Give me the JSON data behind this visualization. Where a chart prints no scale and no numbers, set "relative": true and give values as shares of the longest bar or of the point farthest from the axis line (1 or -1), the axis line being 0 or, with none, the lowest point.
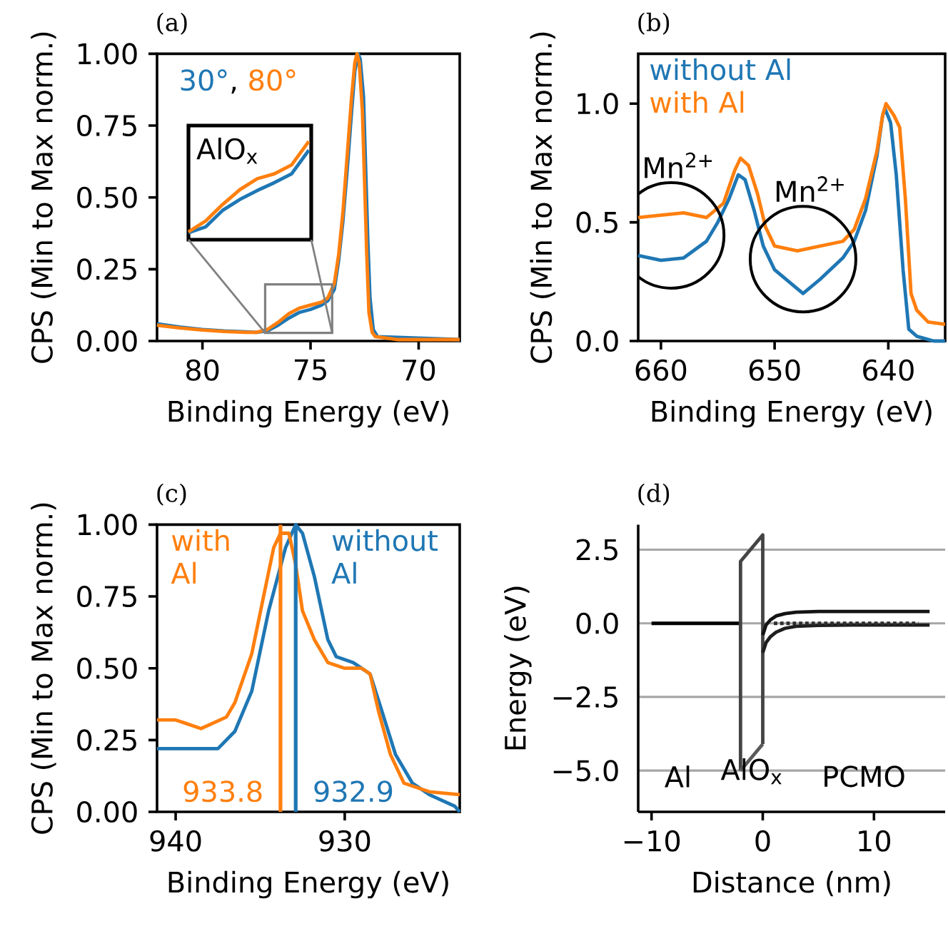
{
  "chart_data": [
    {
      "type": "line",
      "title": "(a)",
      "annotations": [
        ","
      ],
      "xlabel": "Binding Energy (eV)",
      "ylabel": "CPS (Min to Max norm.)",
      "xlim": [
        82.1,
        68.1
      ],
      "ylim": [
        0,
        1
      ],
      "xticks": [
        80,
        75,
        70
      ],
      "yticks": [
        {
          "value": 0,
          "label": "0.00"
        },
        {
          "value": 0.25,
          "label": "0.25"
        },
        {
          "value": 0.5,
          "label": "0.50"
        },
        {
          "value": 0.75,
          "label": "0.75"
        },
        {
          "value": 1,
          "label": "1.00"
        }
      ],
      "series": [
        {
          "name": "30°",
          "color": "#1f77b4",
          "x": [
            82.1,
            81,
            80,
            79,
            78,
            77.5,
            77,
            76.5,
            76,
            75.5,
            75,
            74.5,
            74.2,
            73.9,
            73.7,
            73.5,
            73.3,
            73.1,
            72.95,
            72.8,
            72.7,
            72.55,
            72.45,
            72.35,
            72.25,
            72.1,
            71.9,
            71,
            68.1
          ],
          "values": [
            0.06,
            0.048,
            0.04,
            0.035,
            0.032,
            0.03,
            0.035,
            0.055,
            0.08,
            0.1,
            0.11,
            0.125,
            0.14,
            0.18,
            0.28,
            0.42,
            0.6,
            0.8,
            0.94,
            1.0,
            0.98,
            0.85,
            0.6,
            0.35,
            0.15,
            0.04,
            0.015,
            null,
            0.005
          ]
        },
        {
          "name": "80°",
          "color": "#ff7f0e",
          "x": [
            82.1,
            81,
            80,
            79,
            78,
            77.5,
            77,
            76.5,
            76,
            75.5,
            75,
            74.5,
            74.2,
            73.9,
            73.7,
            73.5,
            73.3,
            73.1,
            72.95,
            72.85,
            72.75,
            72.6,
            72.5,
            72.4,
            72.3,
            72.15,
            72,
            71,
            68.1
          ],
          "values": [
            0.055,
            0.045,
            0.038,
            0.033,
            0.03,
            0.03,
            0.04,
            0.065,
            0.095,
            0.115,
            0.125,
            0.135,
            0.15,
            0.2,
            0.3,
            0.45,
            0.65,
            0.85,
            0.97,
            1.0,
            0.97,
            0.8,
            0.55,
            0.3,
            0.1,
            0.03,
            0.015,
            0.005,
            0.005
          ]
        }
      ]
    },
    {
      "type": "line",
      "annotations": [
        "AlO$_{x}$"
      ],
      "relative": true,
      "categories": [
        null,
        null,
        null,
        null,
        null,
        null,
        null,
        null
      ],
      "series": [
        {
          "color": "#1f77b4",
          "values": [
            0.07,
            0.13,
            0.3,
            0.41,
            0.5,
            0.58,
            0.67,
            0.91
          ]
        },
        {
          "color": "#ff7f0e",
          "values": [
            0.08,
            0.19,
            0.36,
            0.51,
            0.62,
            0.67,
            0.76,
            1.0
          ]
        }
      ]
    },
    {
      "type": "line",
      "title": "(b)",
      "xlabel": "Binding Energy (eV)",
      "ylabel": "CPS (Min to Max norm.)",
      "xlim": [
        662.0,
        635.0
      ],
      "ylim": [
        0,
        1.21
      ],
      "xticks": [
        660,
        650,
        640
      ],
      "yticks": [
        {
          "value": 0,
          "label": "0.0"
        },
        {
          "value": 0.5,
          "label": "0.5"
        },
        {
          "value": 1,
          "label": "1.0"
        }
      ],
      "annotations": [
        "Mn$^{2+}$",
        "Mn$^{2+}$"
      ],
      "series": [
        {
          "name": "without Al",
          "color": "#1f77b4",
          "x": [
            662,
            660,
            658,
            656,
            655,
            654,
            653.2,
            652.6,
            651.8,
            651,
            650,
            648.5,
            647.5,
            646,
            644,
            643,
            642,
            641,
            640.5,
            640.3,
            639.8,
            639.3,
            638.7,
            638.2,
            637.5,
            636,
            635
          ],
          "values": [
            0.36,
            0.34,
            0.35,
            0.42,
            0.5,
            0.6,
            0.7,
            0.68,
            0.55,
            0.4,
            0.3,
            0.24,
            0.2,
            0.26,
            0.35,
            0.42,
            0.55,
            0.78,
            0.95,
            0.98,
            0.92,
            0.7,
            0.3,
            0.05,
            0.02,
            0.0,
            0.0
          ]
        },
        {
          "name": "with Al",
          "color": "#ff7f0e",
          "x": [
            662,
            660,
            658,
            656,
            654.5,
            653.5,
            653,
            652.3,
            651.5,
            650.8,
            650,
            648,
            646,
            644,
            643,
            642,
            641,
            640.5,
            640.2,
            639.5,
            639,
            638.5,
            638,
            637.5,
            636.5,
            635
          ],
          "values": [
            0.52,
            0.53,
            0.54,
            0.52,
            0.58,
            0.72,
            0.77,
            0.74,
            0.62,
            0.48,
            0.4,
            0.38,
            0.4,
            0.42,
            0.47,
            0.6,
            0.8,
            0.95,
            1.0,
            0.95,
            0.9,
            0.6,
            0.2,
            0.13,
            0.08,
            0.07
          ]
        }
      ]
    },
    {
      "type": "line",
      "title": "(c)",
      "xlabel": "Binding Energy (eV)",
      "ylabel": "CPS (Min to Max norm.)",
      "xlim": [
        941.1,
        923.2
      ],
      "ylim": [
        0,
        1
      ],
      "xticks": [
        940,
        930
      ],
      "yticks": [
        {
          "value": 0,
          "label": "0.00"
        },
        {
          "value": 0.25,
          "label": "0.25"
        },
        {
          "value": 0.5,
          "label": "0.50"
        },
        {
          "value": 0.75,
          "label": "0.75"
        },
        {
          "value": 1,
          "label": "1.00"
        }
      ],
      "ref_lines": [
        {
          "axis": "x",
          "value": 933.8,
          "label": "933.8",
          "color": "#ff7f0e"
        },
        {
          "axis": "x",
          "value": 932.9,
          "label": "932.9",
          "color": "#1f77b4"
        }
      ],
      "series": [
        {
          "name": "without Al",
          "color": "#1f77b4",
          "x": [
            941.1,
            939,
            937.5,
            936.5,
            935.5,
            934.5,
            933.5,
            932.9,
            932.5,
            931.8,
            931,
            930.5,
            929.5,
            928.5,
            927.8,
            927,
            926,
            925,
            923.5,
            923.2
          ],
          "values": [
            0.22,
            0.22,
            0.22,
            0.28,
            0.42,
            0.7,
            0.92,
            1.0,
            0.97,
            0.82,
            0.6,
            0.54,
            0.52,
            0.48,
            0.35,
            0.2,
            0.1,
            0.06,
            0.02,
            0.0
          ]
        },
        {
          "name": "with Al",
          "color": "#ff7f0e",
          "x": [
            941.1,
            940,
            938.5,
            937,
            936.5,
            935.5,
            934.8,
            934.2,
            933.8,
            933.3,
            932.9,
            932.5,
            931.8,
            931,
            930,
            929,
            928.5,
            928,
            927.3,
            926.5,
            925,
            923.2
          ],
          "values": [
            0.32,
            0.32,
            0.29,
            0.33,
            0.38,
            0.55,
            0.75,
            0.92,
            0.97,
            0.97,
            0.86,
            0.7,
            0.6,
            0.52,
            0.5,
            0.5,
            0.48,
            0.35,
            0.2,
            0.1,
            0.07,
            0.06
          ]
        }
      ]
    },
    {
      "type": "line",
      "title": "(d)",
      "xlabel": "Distance (nm)",
      "ylabel": "Energy (eV)",
      "xlim": [
        -11.2,
        16.4
      ],
      "ylim": [
        -6.4,
        3.35
      ],
      "grid": "y",
      "xticks": [
        {
          "value": -10,
          "label": "−10"
        },
        0,
        10
      ],
      "yticks": [
        {
          "value": -5,
          "label": "−5.0"
        },
        {
          "value": -2.5,
          "label": "−2.5"
        },
        {
          "value": 0,
          "label": "0.0"
        },
        {
          "value": 2.5,
          "label": "2.5"
        }
      ],
      "annotations": [
        "Al",
        "AlO$_{x}$",
        "PCMO"
      ],
      "series": [
        {
          "color": "#000000",
          "x": [
            -10,
            -2
          ],
          "values": [
            0,
            0
          ]
        },
        {
          "color": "#444444",
          "x": [
            -2,
            -2,
            0,
            0
          ],
          "values": [
            -5.0,
            2.1,
            3.0,
            -4.1
          ]
        },
        {
          "color": "#5a5a5a",
          "x": [
            -2,
            0
          ],
          "values": [
            -5.0,
            -4.1
          ]
        },
        {
          "color": "#141414",
          "x": [
            0,
            0.3,
            0.7,
            1.2,
            2,
            3,
            5,
            15
          ],
          "values": [
            -0.4,
            -0.05,
            0.12,
            0.25,
            0.33,
            0.38,
            0.4,
            0.4
          ]
        },
        {
          "color": "#1e1e1e",
          "x": [
            0,
            0.3,
            0.7,
            1.2,
            2,
            3,
            5,
            8,
            15
          ],
          "values": [
            -1.0,
            -0.65,
            -0.45,
            -0.3,
            -0.17,
            -0.1,
            -0.07,
            -0.06,
            -0.06
          ]
        },
        {
          "color": "#2d2d2d",
          "line_style": "dotted",
          "x": [
            1,
            14
          ],
          "values": [
            0,
            0
          ]
        }
      ]
    }
  ]
}
